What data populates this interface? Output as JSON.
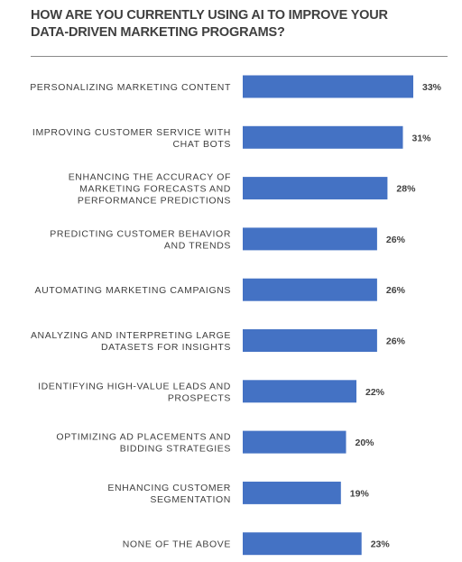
{
  "chart_data": {
    "type": "bar",
    "orientation": "horizontal",
    "title": "HOW ARE YOU CURRENTLY USING AI TO IMPROVE YOUR\nDATA-DRIVEN MARKETING PROGRAMS?",
    "categories": [
      "PERSONALIZING MARKETING CONTENT",
      "IMPROVING CUSTOMER SERVICE WITH\nCHAT BOTS",
      "ENHANCING THE ACCURACY OF\nMARKETING FORECASTS AND\nPERFORMANCE PREDICTIONS",
      "PREDICTING CUSTOMER BEHAVIOR\nAND TRENDS",
      "AUTOMATING MARKETING CAMPAIGNS",
      "ANALYZING AND INTERPRETING LARGE\nDATASETS FOR INSIGHTS",
      "IDENTIFYING HIGH-VALUE LEADS AND\nPROSPECTS",
      "OPTIMIZING AD PLACEMENTS AND\nBIDDING STRATEGIES",
      "ENHANCING CUSTOMER\nSEGMENTATION",
      "NONE OF THE ABOVE"
    ],
    "values": [
      33,
      31,
      28,
      26,
      26,
      26,
      22,
      20,
      19,
      23
    ],
    "value_labels": [
      "33%",
      "31%",
      "28%",
      "26%",
      "26%",
      "26%",
      "22%",
      "20%",
      "19%",
      "23%"
    ],
    "unit": "%",
    "xlim": [
      0,
      33
    ],
    "grid": false,
    "legend": "none",
    "bar_color": "#4472c4"
  }
}
